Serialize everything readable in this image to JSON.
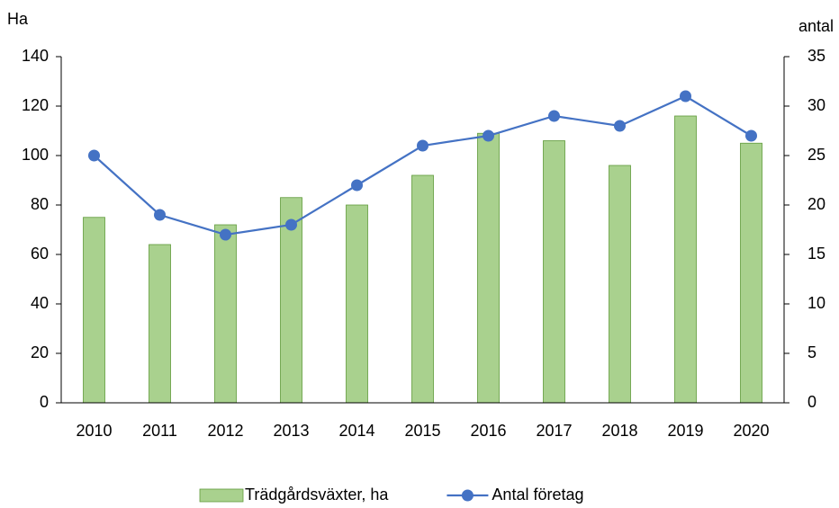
{
  "chart_data": {
    "type": "bar",
    "y_label": "Ha",
    "y2_label": "antal",
    "categories": [
      "2010",
      "2011",
      "2012",
      "2013",
      "2014",
      "2015",
      "2016",
      "2017",
      "2018",
      "2019",
      "2020"
    ],
    "series": [
      {
        "name": "Trädgårdsväxter, ha",
        "type": "bar",
        "color": "#a9d18e",
        "values": [
          75,
          64,
          72,
          83,
          80,
          92,
          109,
          106,
          96,
          116,
          105
        ]
      },
      {
        "name": "Antal företag",
        "type": "line",
        "axis": "y2",
        "color": "#4472c4",
        "values": [
          25,
          19,
          17,
          18,
          22,
          26,
          27,
          29,
          28,
          31,
          27
        ]
      }
    ],
    "ylim": [
      0,
      140
    ],
    "yticks": [
      0,
      20,
      40,
      60,
      80,
      100,
      120,
      140
    ],
    "y2lim": [
      0,
      35
    ],
    "y2ticks": [
      0,
      5,
      10,
      15,
      20,
      25,
      30,
      35
    ],
    "grid": false,
    "legend": "bottom"
  }
}
